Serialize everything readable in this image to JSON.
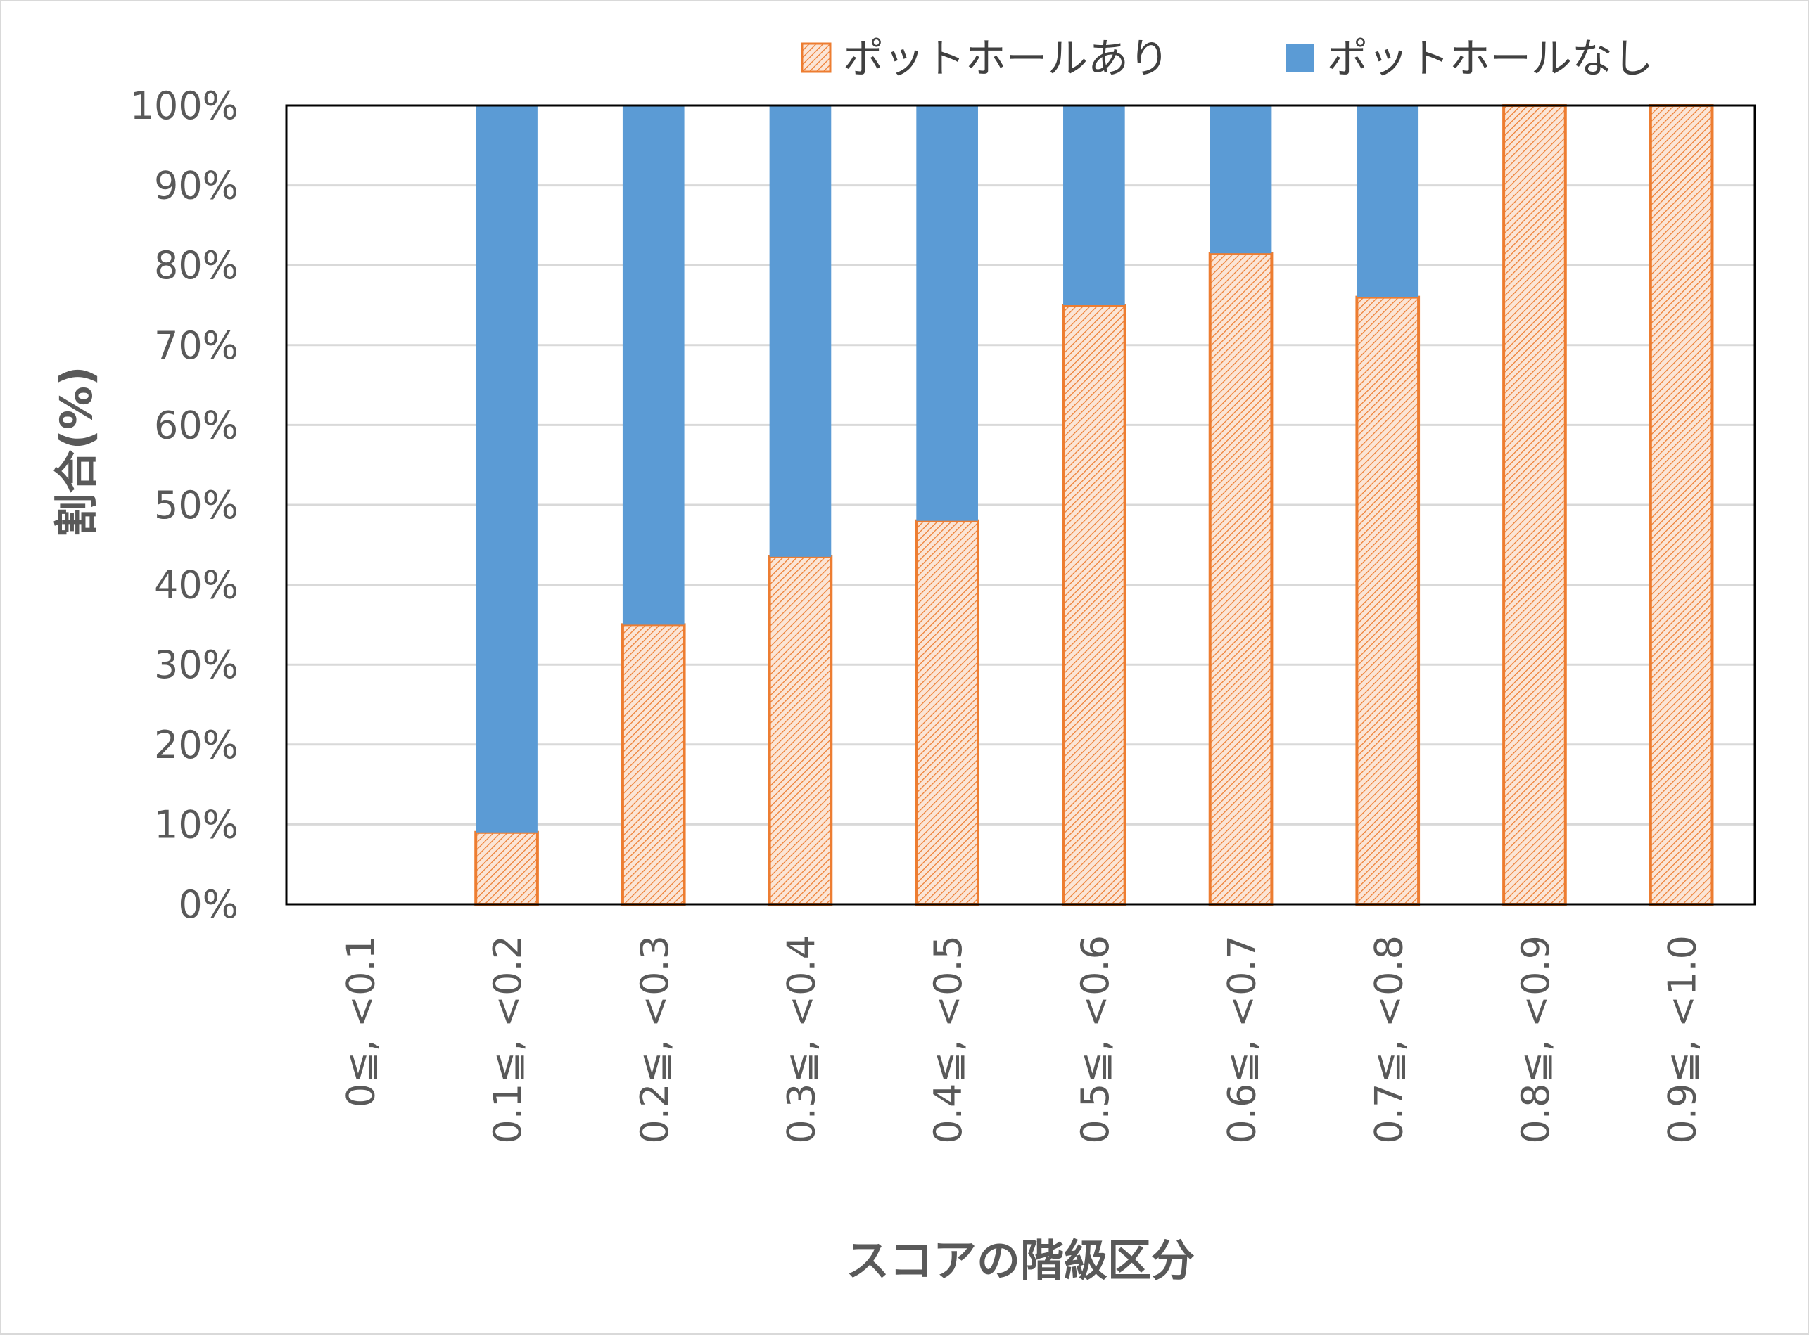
{
  "chart_data": {
    "type": "bar",
    "stacked": true,
    "categories": [
      "0≦, <0.1",
      "0.1≦, <0.2",
      "0.2≦, <0.3",
      "0.3≦, <0.4",
      "0.4≦, <0.5",
      "0.5≦, <0.6",
      "0.6≦, <0.7",
      "0.7≦, <0.8",
      "0.8≦, <0.9",
      "0.9≦, <1.0"
    ],
    "series": [
      {
        "name": "ポットホールあり",
        "values": [
          0,
          9,
          35,
          43.5,
          48,
          75,
          81.5,
          76,
          100,
          100
        ],
        "color": "#ed7d31",
        "pattern": "diagonal-hatch"
      },
      {
        "name": "ポットホールなし",
        "values": [
          0,
          91,
          65,
          56.5,
          52,
          25,
          18.5,
          24,
          0,
          0
        ],
        "color": "#5b9bd5"
      }
    ],
    "xlabel": "スコアの階級区分",
    "ylabel": "割合(%)",
    "ylim": [
      0,
      100
    ],
    "yticks": [
      "0%",
      "10%",
      "20%",
      "30%",
      "40%",
      "50%",
      "60%",
      "70%",
      "80%",
      "90%",
      "100%"
    ],
    "grid": true,
    "legend_position": "top-right"
  }
}
